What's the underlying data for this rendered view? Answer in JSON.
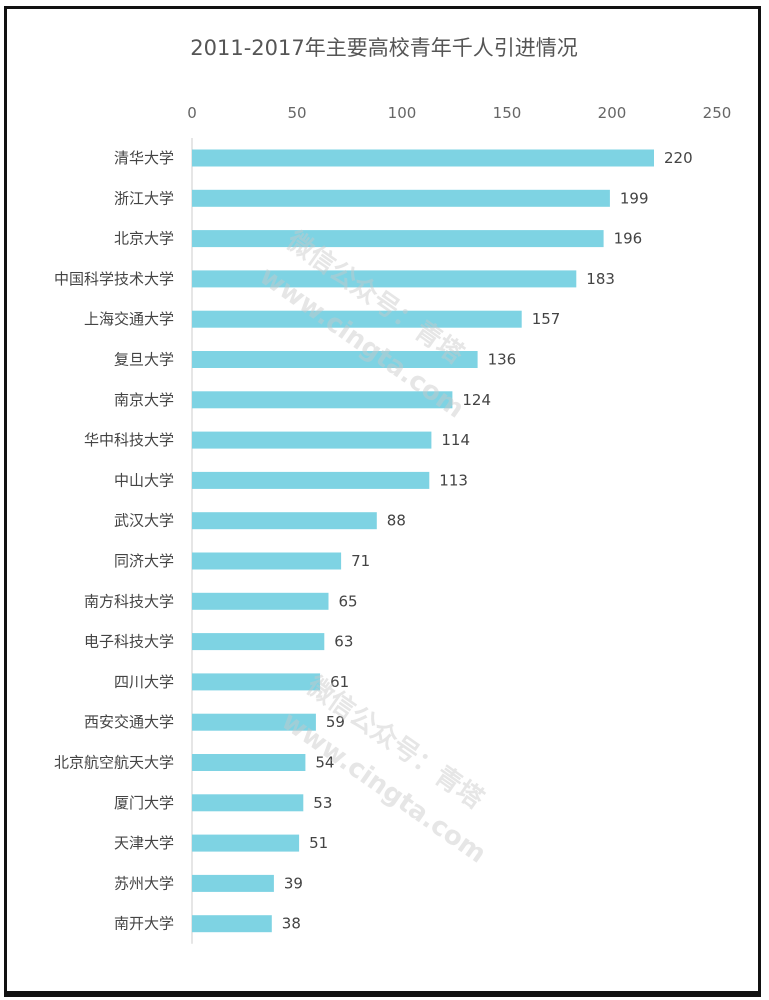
{
  "chart_data": {
    "type": "bar",
    "orientation": "horizontal",
    "title": "2011-2017年主要高校青年千人引进情况",
    "xlim": [
      0,
      250
    ],
    "xticks": [
      0,
      50,
      100,
      150,
      200,
      250
    ],
    "categories": [
      "清华大学",
      "浙江大学",
      "北京大学",
      "中国科学技术大学",
      "上海交通大学",
      "复旦大学",
      "南京大学",
      "华中科技大学",
      "中山大学",
      "武汉大学",
      "同济大学",
      "南方科技大学",
      "电子科技大学",
      "四川大学",
      "西安交通大学",
      "北京航空航天大学",
      "厦门大学",
      "天津大学",
      "苏州大学",
      "南开大学"
    ],
    "values": [
      220,
      199,
      196,
      183,
      157,
      136,
      124,
      114,
      113,
      88,
      71,
      65,
      63,
      61,
      59,
      54,
      53,
      51,
      39,
      38
    ],
    "bar_color": "#7ed3e3",
    "grid": false,
    "legend": "none"
  },
  "watermark": {
    "line1": "微信公众号：青塔",
    "line2": "www.cingta.com"
  }
}
